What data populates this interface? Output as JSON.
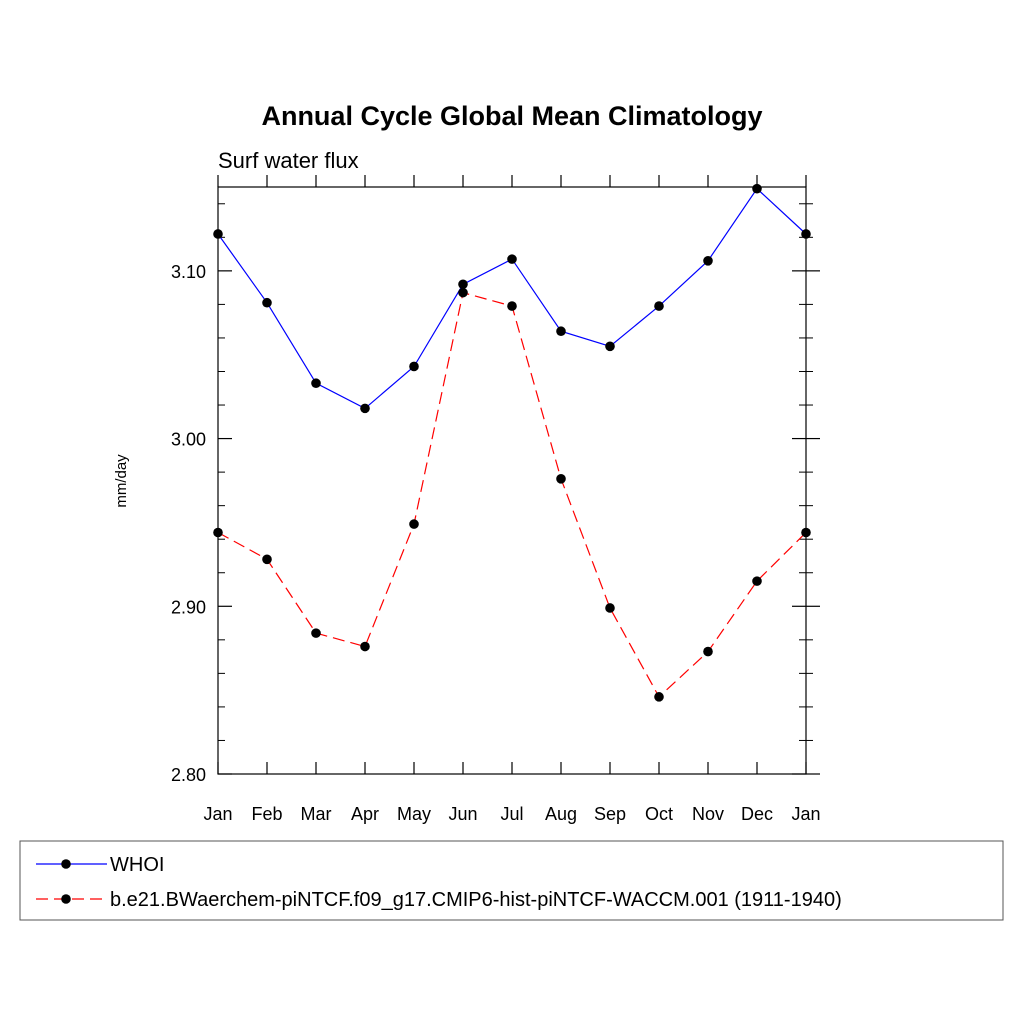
{
  "chart_data": {
    "type": "line",
    "title": "Annual Cycle Global Mean Climatology",
    "subtitle": "Surf water flux",
    "ylabel": "mm/day",
    "xlabel": "",
    "ylim": [
      2.8,
      3.15
    ],
    "yticks": [
      2.8,
      2.9,
      3.0,
      3.1
    ],
    "ytick_labels": [
      "2.80",
      "2.90",
      "3.00",
      "3.10"
    ],
    "categories": [
      "Jan",
      "Feb",
      "Mar",
      "Apr",
      "May",
      "Jun",
      "Jul",
      "Aug",
      "Sep",
      "Oct",
      "Nov",
      "Dec",
      "Jan"
    ],
    "grid": false,
    "legend_position": "bottom",
    "series": [
      {
        "name": "WHOI",
        "color": "#0000ff",
        "dash": "solid",
        "values": [
          3.122,
          3.081,
          3.033,
          3.018,
          3.043,
          3.092,
          3.107,
          3.064,
          3.055,
          3.079,
          3.106,
          3.149,
          3.122
        ]
      },
      {
        "name": "b.e21.BWaerchem-piNTCF.f09_g17.CMIP6-hist-piNTCF-WACCM.001 (1911-1940)",
        "color": "#ff0000",
        "dash": "dashed",
        "values": [
          2.944,
          2.928,
          2.884,
          2.876,
          2.949,
          3.087,
          3.079,
          2.976,
          2.899,
          2.846,
          2.873,
          2.915,
          2.944
        ]
      }
    ]
  }
}
